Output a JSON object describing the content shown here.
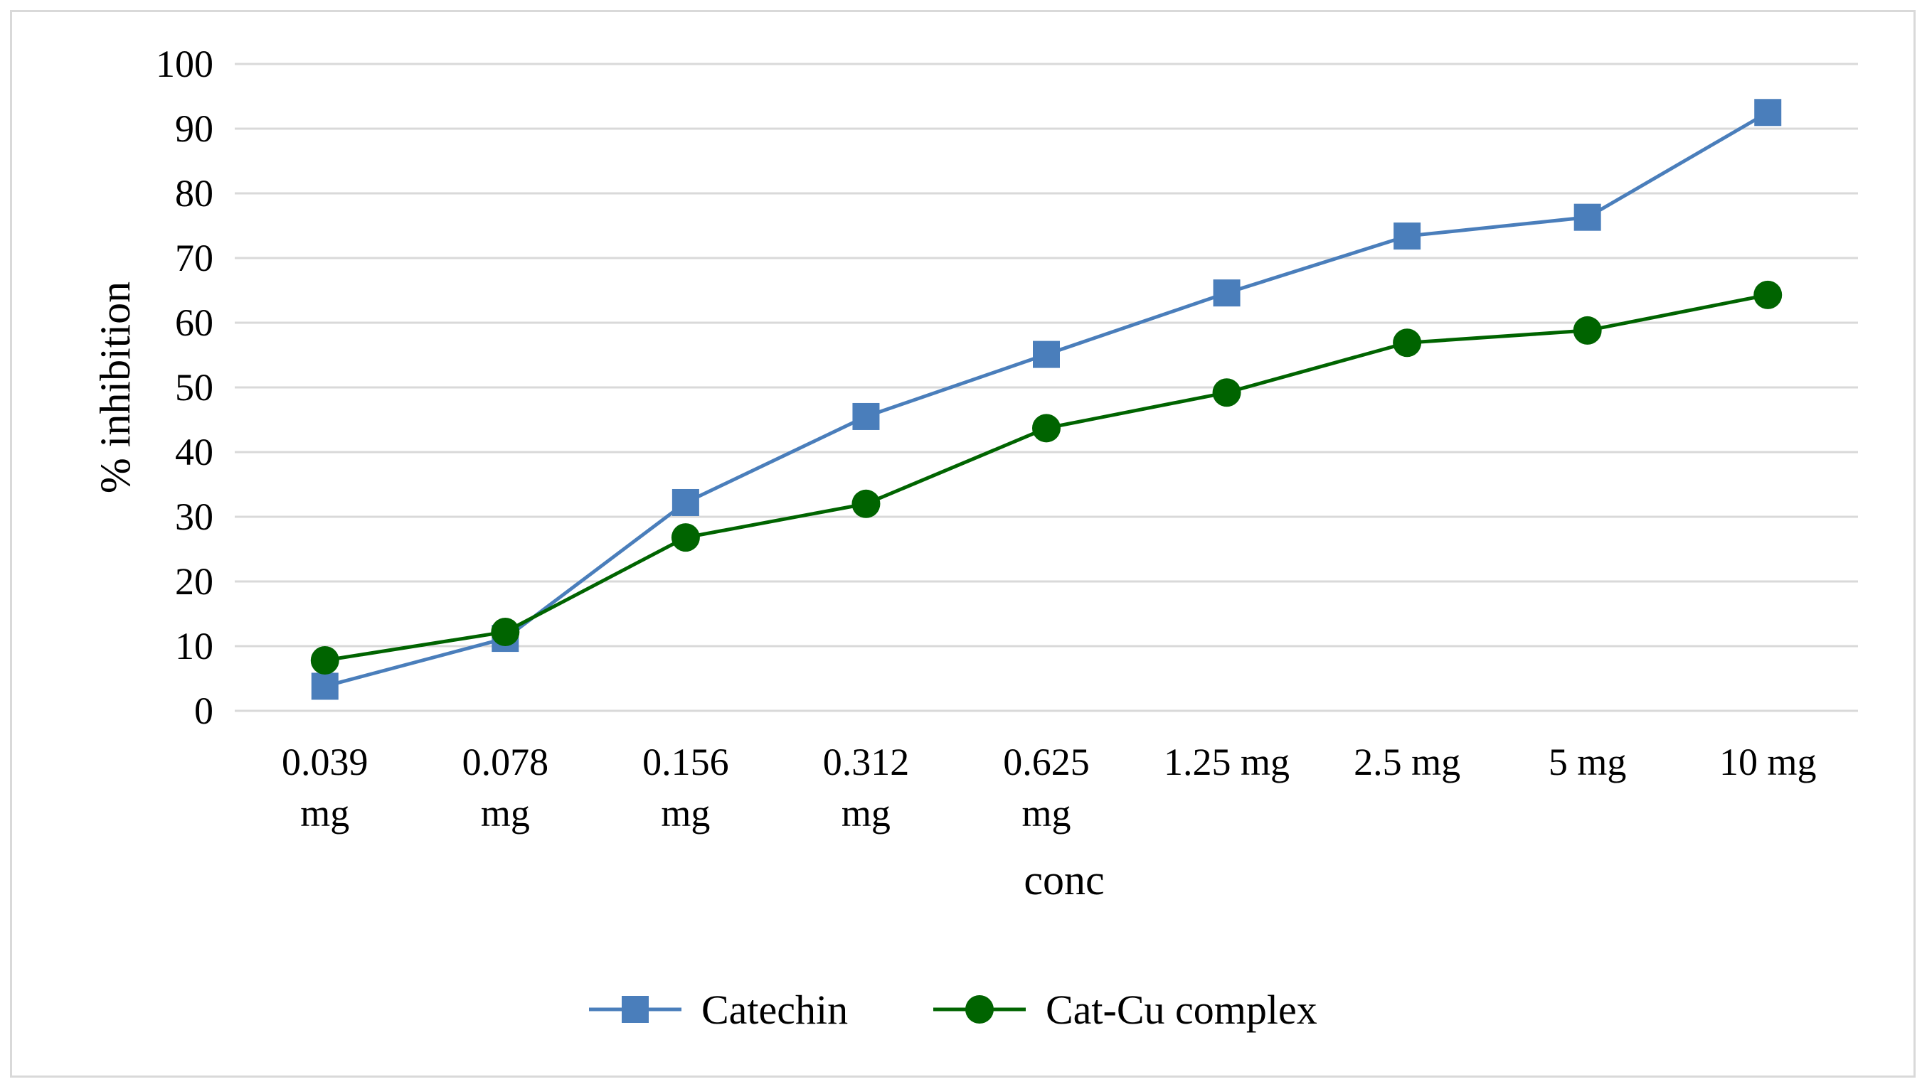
{
  "chart_data": {
    "type": "line",
    "categories": [
      [
        "0.039",
        "mg"
      ],
      [
        "0.078",
        "mg"
      ],
      [
        "0.156",
        "mg"
      ],
      [
        "0.312",
        "mg"
      ],
      [
        "0.625",
        "mg"
      ],
      [
        "1.25 mg"
      ],
      [
        "2.5 mg"
      ],
      [
        "5 mg"
      ],
      [
        "10 mg"
      ]
    ],
    "series": [
      {
        "name": "Catechin",
        "values": [
          3.8,
          11.2,
          32.2,
          45.5,
          55.1,
          64.6,
          73.4,
          76.3,
          92.5
        ],
        "color": "#4a7ebb",
        "marker": "square"
      },
      {
        "name": "Cat-Cu complex",
        "values": [
          7.8,
          12.2,
          26.8,
          32.0,
          43.7,
          49.2,
          56.9,
          58.8,
          64.3
        ],
        "color": "#006400",
        "marker": "circle"
      }
    ],
    "xlabel": "conc",
    "ylabel": "% inhibition",
    "ylim": [
      0,
      100
    ],
    "yticks": [
      "0",
      "10",
      "20",
      "30",
      "40",
      "50",
      "60",
      "70",
      "80",
      "90",
      "100"
    ],
    "grid": true,
    "legend_position": "bottom-center"
  }
}
